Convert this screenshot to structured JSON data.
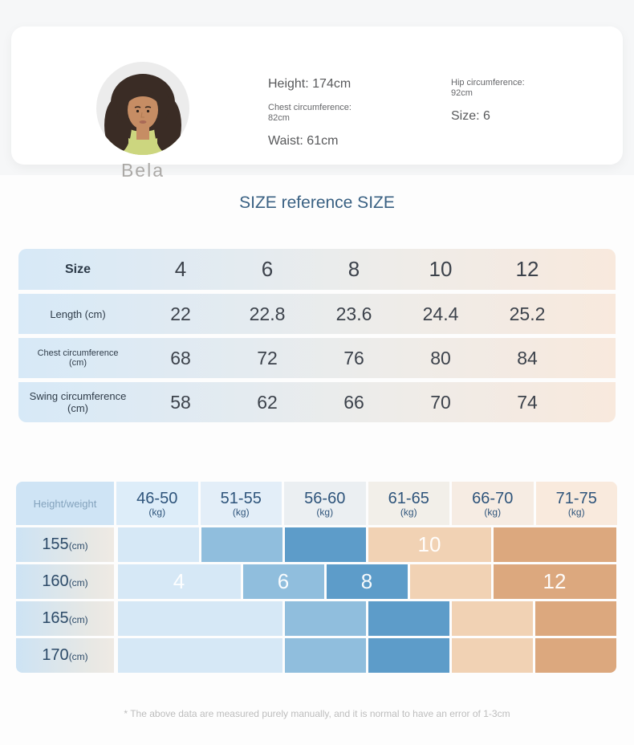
{
  "model_card": {
    "name": "Bela",
    "stats_col1": [
      {
        "text": "Height: 174cm",
        "style": "lg"
      },
      {
        "text": "Chest circumference:\n82cm",
        "style": "sm"
      },
      {
        "text": "Waist: 61cm",
        "style": "lg"
      }
    ],
    "stats_col2": [
      {
        "text": "Hip circumference:\n92cm",
        "style": "sm"
      },
      {
        "text": "Size: 6",
        "style": "lg"
      }
    ]
  },
  "section_title": "SIZE reference SIZE",
  "size_table": {
    "header_label": "Size",
    "header_values": [
      "4",
      "6",
      "8",
      "10",
      "12"
    ],
    "rows": [
      {
        "label": "Length (cm)",
        "label_class": "md",
        "values": [
          "22",
          "22.8",
          "23.6",
          "24.4",
          "25.2"
        ]
      },
      {
        "label": "Chest circumference (cm)",
        "label_class": "sm",
        "values": [
          "68",
          "72",
          "76",
          "80",
          "84"
        ]
      },
      {
        "label": "Swing circumference (cm)",
        "label_class": "md",
        "values": [
          "58",
          "62",
          "66",
          "70",
          "74"
        ]
      }
    ]
  },
  "size_matrix": {
    "corner_label": "Height/weight",
    "weight_columns": [
      {
        "range": "46-50",
        "unit": "(kg)"
      },
      {
        "range": "51-55",
        "unit": "(kg)"
      },
      {
        "range": "56-60",
        "unit": "(kg)"
      },
      {
        "range": "61-65",
        "unit": "(kg)"
      },
      {
        "range": "66-70",
        "unit": "(kg)"
      },
      {
        "range": "71-75",
        "unit": "(kg)"
      }
    ],
    "header_cell_colors": [
      "#ddedf9",
      "#e3eef8",
      "#ebeff2",
      "#f2efe9",
      "#f6ece3",
      "#f9eadd"
    ],
    "tones": {
      "pale": "#d6e8f6",
      "medium": "#90bedd",
      "dark": "#5d9cc9",
      "peach": "#f1d2b4",
      "tan": "#dca87e"
    },
    "height_rows": [
      {
        "height": "155",
        "unit": "(cm)",
        "cells": [
          {
            "tone": "pale",
            "start": 0,
            "span": 2,
            "label": ""
          },
          {
            "tone": "medium",
            "start": 2,
            "span": 2,
            "label": ""
          },
          {
            "tone": "dark",
            "start": 4,
            "span": 2,
            "label": ""
          },
          {
            "tone": "peach",
            "start": 6,
            "span": 3,
            "label": "10"
          },
          {
            "tone": "tan",
            "start": 9,
            "span": 3,
            "label": ""
          }
        ]
      },
      {
        "height": "160",
        "unit": "(cm)",
        "cells": [
          {
            "tone": "pale",
            "start": 0,
            "span": 3,
            "label": "4"
          },
          {
            "tone": "medium",
            "start": 3,
            "span": 2,
            "label": "6"
          },
          {
            "tone": "dark",
            "start": 5,
            "span": 2,
            "label": "8"
          },
          {
            "tone": "peach",
            "start": 7,
            "span": 2,
            "label": ""
          },
          {
            "tone": "tan",
            "start": 9,
            "span": 3,
            "label": "12"
          }
        ]
      },
      {
        "height": "165",
        "unit": "(cm)",
        "cells": [
          {
            "tone": "pale",
            "start": 0,
            "span": 4,
            "label": ""
          },
          {
            "tone": "medium",
            "start": 4,
            "span": 2,
            "label": ""
          },
          {
            "tone": "dark",
            "start": 6,
            "span": 2,
            "label": ""
          },
          {
            "tone": "peach",
            "start": 8,
            "span": 2,
            "label": ""
          },
          {
            "tone": "tan",
            "start": 10,
            "span": 2,
            "label": ""
          }
        ]
      },
      {
        "height": "170",
        "unit": "(cm)",
        "cells": [
          {
            "tone": "pale",
            "start": 0,
            "span": 4,
            "label": ""
          },
          {
            "tone": "medium",
            "start": 4,
            "span": 2,
            "label": ""
          },
          {
            "tone": "dark",
            "start": 6,
            "span": 2,
            "label": ""
          },
          {
            "tone": "peach",
            "start": 8,
            "span": 2,
            "label": ""
          },
          {
            "tone": "tan",
            "start": 10,
            "span": 2,
            "label": ""
          }
        ]
      }
    ]
  },
  "footnote": "* The above data are measured purely manually, and it is normal to have an error of 1-3cm",
  "avatar": {
    "circle_color": "#ececec",
    "hair_color": "#3a2c25",
    "skin_color": "#c68d64",
    "shirt_color": "#ccd67f",
    "lip_color": "#a96a57"
  }
}
